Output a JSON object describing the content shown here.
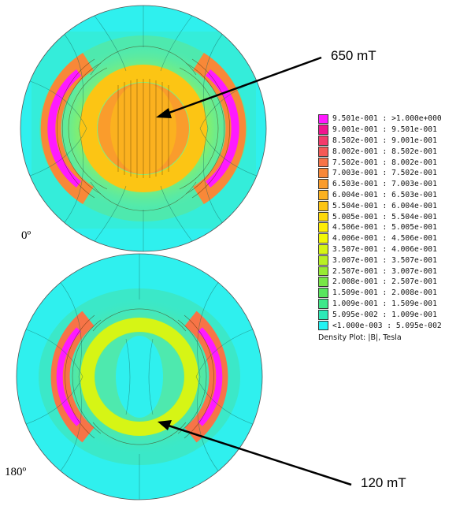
{
  "plots": [
    {
      "label": "0º"
    },
    {
      "label": "180º"
    }
  ],
  "annotations": [
    {
      "text": "650 mT"
    },
    {
      "text": "120 mT"
    }
  ],
  "legend": {
    "caption": "Density Plot: |B|, Tesla",
    "entries": [
      {
        "range": "9.501e-001 : >1.000e+000",
        "color": "#ff1aff"
      },
      {
        "range": "9.001e-001 : 9.501e-001",
        "color": "#f0148f"
      },
      {
        "range": "8.502e-001 : 9.001e-001",
        "color": "#f33b6b"
      },
      {
        "range": "8.002e-001 : 8.502e-001",
        "color": "#f55a56"
      },
      {
        "range": "7.502e-001 : 8.002e-001",
        "color": "#f77447"
      },
      {
        "range": "7.003e-001 : 7.502e-001",
        "color": "#f88838"
      },
      {
        "range": "6.503e-001 : 7.003e-001",
        "color": "#fa9c2c"
      },
      {
        "range": "6.004e-001 : 6.503e-001",
        "color": "#fbb11f"
      },
      {
        "range": "5.504e-001 : 6.004e-001",
        "color": "#fcc514"
      },
      {
        "range": "5.005e-001 : 5.504e-001",
        "color": "#fdd90b"
      },
      {
        "range": "4.506e-001 : 5.005e-001",
        "color": "#fdec05"
      },
      {
        "range": "4.006e-001 : 4.506e-001",
        "color": "#f2f707"
      },
      {
        "range": "3.507e-001 : 4.006e-001",
        "color": "#d6f515"
      },
      {
        "range": "3.007e-001 : 3.507e-001",
        "color": "#b8f024"
      },
      {
        "range": "2.507e-001 : 3.007e-001",
        "color": "#97ea33"
      },
      {
        "range": "2.008e-001 : 2.507e-001",
        "color": "#77e646"
      },
      {
        "range": "1.509e-001 : 2.008e-001",
        "color": "#58e65e"
      },
      {
        "range": "1.009e-001 : 1.509e-001",
        "color": "#3fe88a"
      },
      {
        "range": "5.095e-002 : 1.009e-001",
        "color": "#2ceab7"
      },
      {
        "range": "<1.000e-003 : 5.095e-002",
        "color": "#22f2f2"
      }
    ]
  }
}
